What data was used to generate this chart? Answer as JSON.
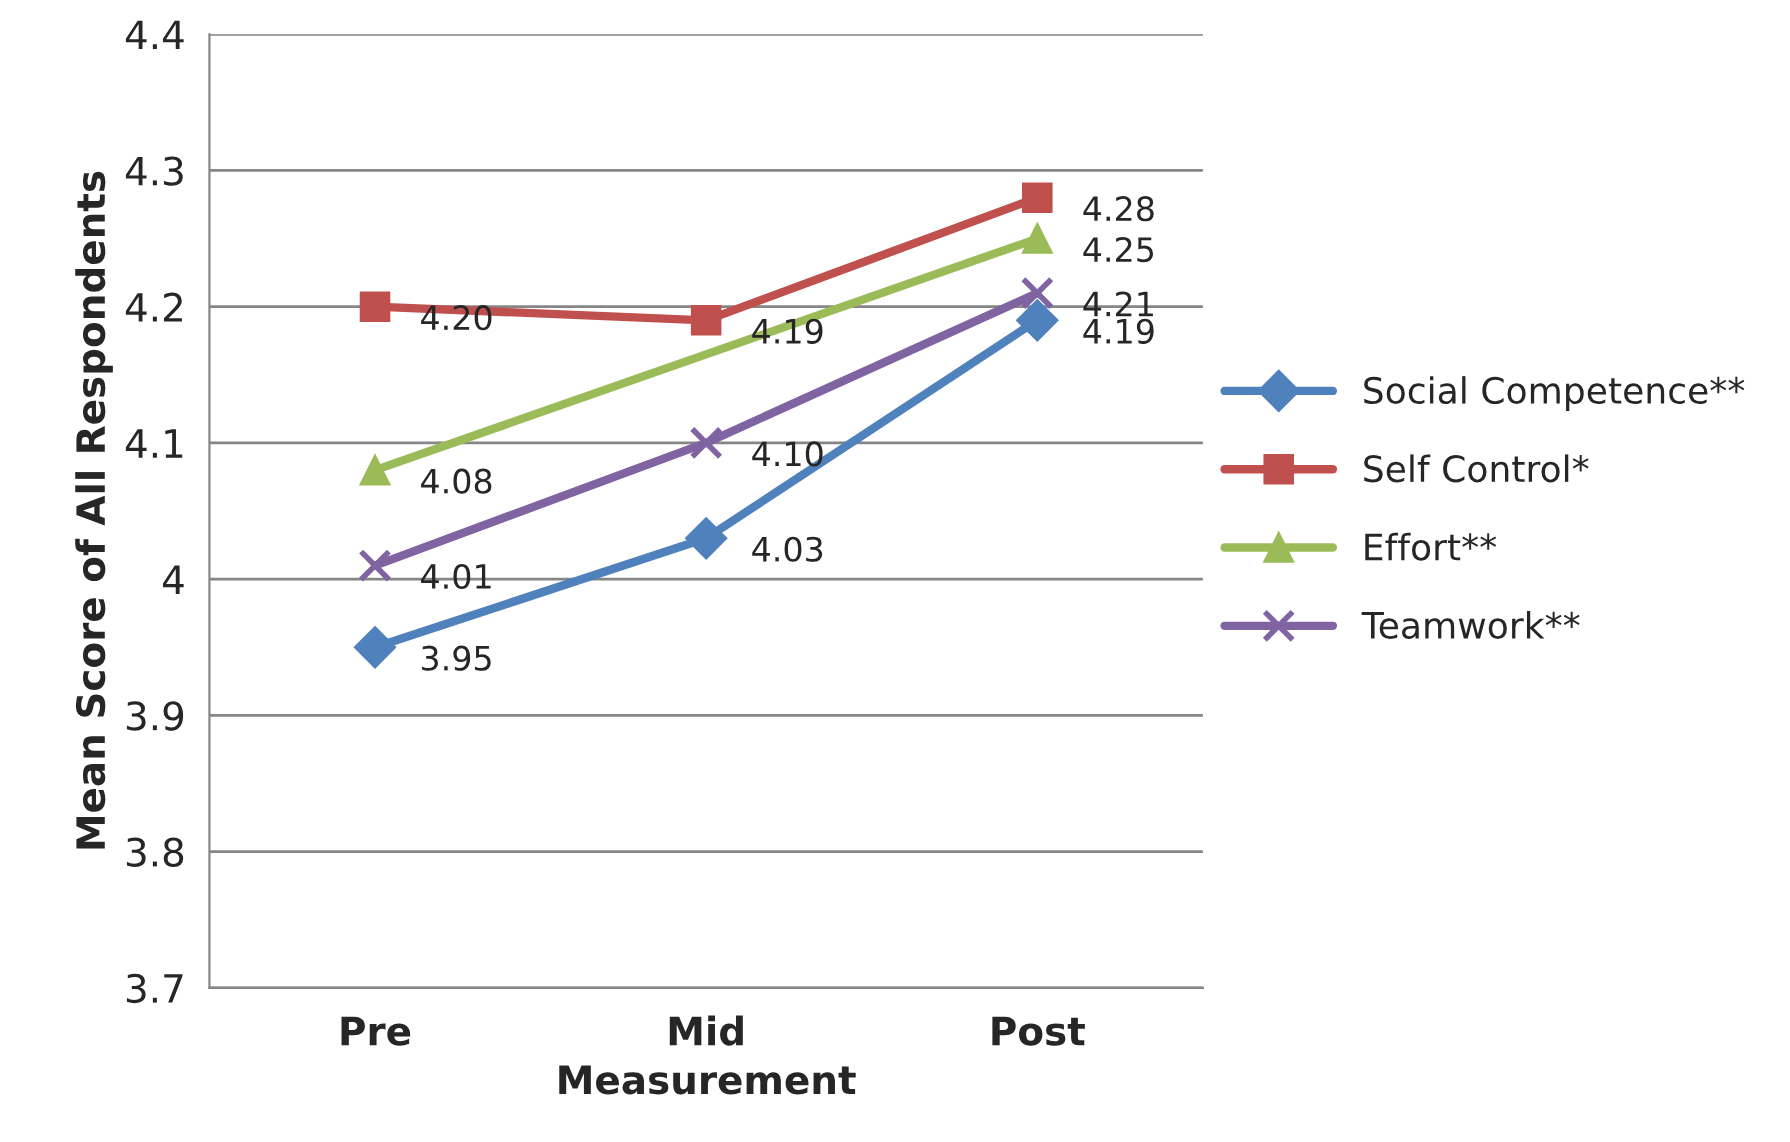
{
  "chart_data": {
    "type": "line",
    "xlabel": "Measurement",
    "ylabel": "Mean Score of All Respondents",
    "categories": [
      "Pre",
      "Mid",
      "Post"
    ],
    "series": [
      {
        "name": "Social Competence**",
        "color": "#4f81bd",
        "marker": "diamond",
        "values": [
          3.95,
          4.03,
          4.19
        ],
        "value_labels": [
          "3.95",
          "4.03",
          "4.19"
        ]
      },
      {
        "name": "Self Control*",
        "color": "#c0504d",
        "marker": "square",
        "values": [
          4.2,
          4.19,
          4.28
        ],
        "value_labels": [
          "4.20",
          "4.19",
          "4.28"
        ]
      },
      {
        "name": "Effort**",
        "color": "#9bbb59",
        "marker": "triangle",
        "values": [
          4.08,
          null,
          4.25
        ],
        "value_labels": [
          "4.08",
          null,
          "4.25"
        ]
      },
      {
        "name": "Teamwork**",
        "color": "#8064a2",
        "marker": "cross",
        "values": [
          4.01,
          4.1,
          4.21
        ],
        "value_labels": [
          "4.01",
          "4.10",
          "4.21"
        ]
      }
    ],
    "ylim": [
      3.7,
      4.4
    ],
    "yticks": [
      3.7,
      3.8,
      3.9,
      4,
      4.1,
      4.2,
      4.3,
      4.4
    ],
    "grid": "y",
    "legend": "right"
  }
}
